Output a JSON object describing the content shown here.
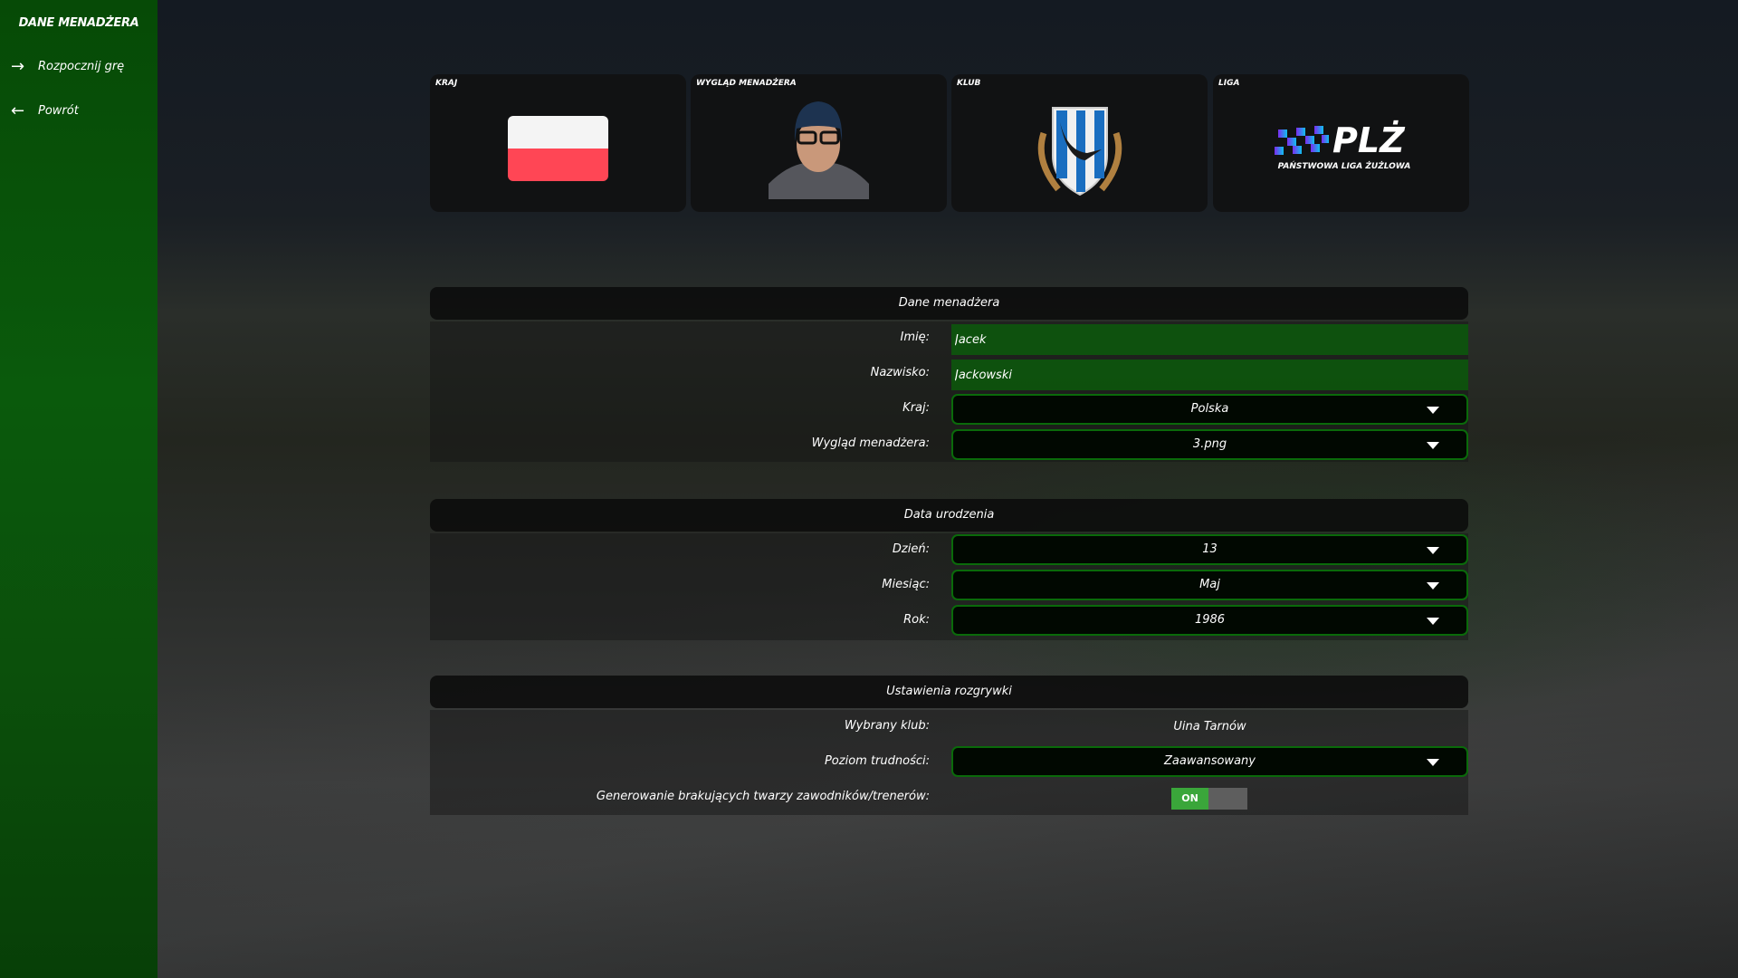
{
  "sidebar": {
    "title": "DANE MENADŻERA",
    "items": [
      {
        "label": "Rozpocznij grę",
        "icon": "arrow-right-icon"
      },
      {
        "label": "Powrót",
        "icon": "arrow-left-icon"
      }
    ]
  },
  "cards": {
    "country": "KRAJ",
    "appearance": "WYGLĄD MENADŻERA",
    "club": "KLUB",
    "league": "LIGA",
    "league_logo_text": "PLŻ",
    "league_logo_sub": "PAŃSTWOWA LIGA ŻUŻLOWA"
  },
  "manager": {
    "header": "Dane menadżera",
    "first_name_label": "Imię:",
    "first_name": "Jacek",
    "last_name_label": "Nazwisko:",
    "last_name": "Jackowski",
    "country_label": "Kraj:",
    "country": "Polska",
    "appearance_label": "Wygląd menadżera:",
    "appearance": "3.png"
  },
  "birth": {
    "header": "Data urodzenia",
    "day_label": "Dzień:",
    "day": "13",
    "month_label": "Miesiąc:",
    "month": "Maj",
    "year_label": "Rok:",
    "year": "1986"
  },
  "settings": {
    "header": "Ustawienia rozgrywki",
    "club_label": "Wybrany klub:",
    "club": "Uina Tarnów",
    "difficulty_label": "Poziom trudności:",
    "difficulty": "Zaawansowany",
    "faces_label": "Generowanie brakujących twarzy zawodników/trenerów:",
    "faces_toggle": "ON",
    "faces_enabled": true
  },
  "colors": {
    "accent": "#0a6a0a",
    "sidebar": "#064a06",
    "toggle_on": "#3aa63a",
    "flag_white": "#f4f4f4",
    "flag_red": "#ff4655"
  }
}
